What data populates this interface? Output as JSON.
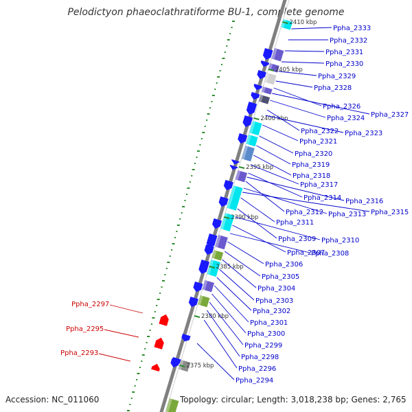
{
  "title": "Pelodictyon phaeoclathratiforme BU-1, complete genome",
  "accession": "Accession: NC_011060",
  "topology": "Topology: circular; Length: 3,018,238 bp; Genes: 2,765",
  "colors": {
    "cds_blue": "#1a1aff",
    "cyan": "#00e5ee",
    "slate": "#6a5acd",
    "olive": "#7aa83a",
    "gray": "#8c8c8c",
    "minus_red": "#ff0000",
    "label_blue": "#0000cc",
    "label_red": "#cc0000",
    "gc_green": "#2e8b2e",
    "backbone": "#808080"
  },
  "kbp_ticks": [
    "2410 kbp",
    "2405 kbp",
    "2400 kbp",
    "2395 kbp",
    "2390 kbp",
    "2385 kbp",
    "2380 kbp",
    "2375 kbp"
  ],
  "genes_right": [
    "Ppha_2333",
    "Ppha_2332",
    "Ppha_2331",
    "Ppha_2330",
    "Ppha_2329",
    "Ppha_2328",
    "Ppha_2326",
    "Ppha_2327",
    "Ppha_2324",
    "Ppha_2322",
    "Ppha_2323",
    "Ppha_2321",
    "Ppha_2320",
    "Ppha_2319",
    "Ppha_2318",
    "Ppha_2317",
    "Ppha_2314",
    "Ppha_2316",
    "Ppha_2312",
    "Ppha_2313",
    "Ppha_2315",
    "Ppha_2311",
    "Ppha_2309",
    "Ppha_2310",
    "Ppha_2307",
    "Ppha_2308",
    "Ppha_2306",
    "Ppha_2305",
    "Ppha_2304",
    "Ppha_2303",
    "Ppha_2302",
    "Ppha_2301",
    "Ppha_2300",
    "Ppha_2299",
    "Ppha_2298",
    "Ppha_2296",
    "Ppha_2294"
  ],
  "genes_left": [
    "Ppha_2297",
    "Ppha_2295",
    "Ppha_2293"
  ]
}
